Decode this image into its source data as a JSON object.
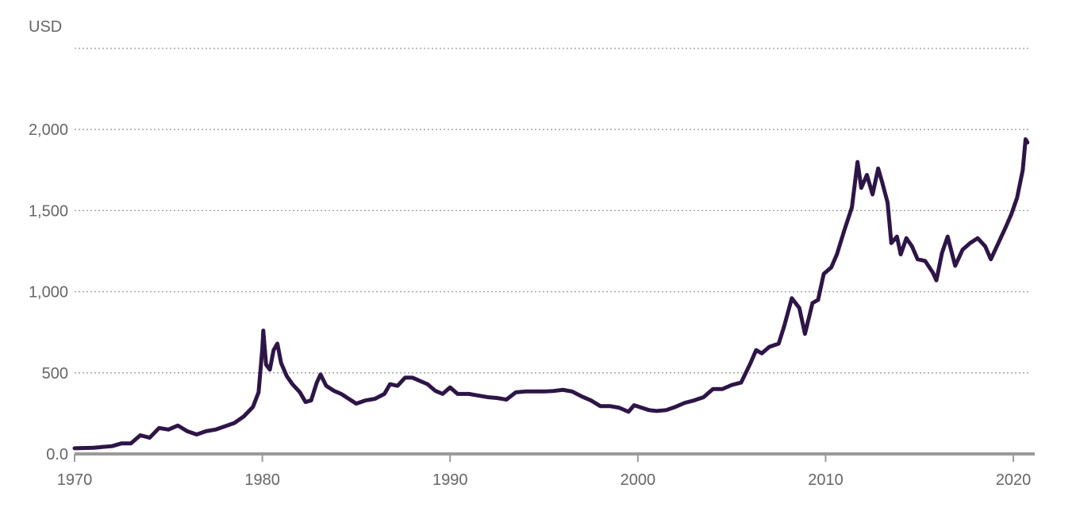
{
  "chart_data": {
    "type": "line",
    "title": "",
    "xlabel": "",
    "ylabel": "USD",
    "xlim": [
      1970,
      2020.8
    ],
    "ylim": [
      0,
      2500
    ],
    "yticks": [
      {
        "value": 0,
        "label": "0.0"
      },
      {
        "value": 500,
        "label": "500"
      },
      {
        "value": 1000,
        "label": "1,000"
      },
      {
        "value": 1500,
        "label": "1,500"
      },
      {
        "value": 2000,
        "label": "2,000"
      },
      {
        "value": 2500,
        "label": ""
      }
    ],
    "xticks": [
      {
        "value": 1970,
        "label": "1970"
      },
      {
        "value": 1980,
        "label": "1980"
      },
      {
        "value": 1990,
        "label": "1990"
      },
      {
        "value": 2000,
        "label": "2000"
      },
      {
        "value": 2010,
        "label": "2010"
      },
      {
        "value": 2020,
        "label": "2020"
      }
    ],
    "grid": true,
    "series": [
      {
        "color": "#2e1547",
        "points": [
          [
            1970.0,
            35
          ],
          [
            1971.0,
            38
          ],
          [
            1972.0,
            48
          ],
          [
            1972.5,
            65
          ],
          [
            1973.0,
            65
          ],
          [
            1973.5,
            115
          ],
          [
            1974.0,
            100
          ],
          [
            1974.5,
            160
          ],
          [
            1975.0,
            150
          ],
          [
            1975.5,
            175
          ],
          [
            1976.0,
            140
          ],
          [
            1976.5,
            120
          ],
          [
            1977.0,
            140
          ],
          [
            1977.5,
            150
          ],
          [
            1978.0,
            170
          ],
          [
            1978.5,
            190
          ],
          [
            1979.0,
            230
          ],
          [
            1979.5,
            290
          ],
          [
            1979.8,
            380
          ],
          [
            1980.0,
            650
          ],
          [
            1980.05,
            760
          ],
          [
            1980.2,
            550
          ],
          [
            1980.4,
            520
          ],
          [
            1980.6,
            640
          ],
          [
            1980.8,
            680
          ],
          [
            1981.0,
            560
          ],
          [
            1981.3,
            480
          ],
          [
            1981.6,
            430
          ],
          [
            1982.0,
            380
          ],
          [
            1982.3,
            320
          ],
          [
            1982.6,
            330
          ],
          [
            1982.9,
            440
          ],
          [
            1983.1,
            490
          ],
          [
            1983.4,
            420
          ],
          [
            1983.8,
            390
          ],
          [
            1984.2,
            370
          ],
          [
            1984.6,
            340
          ],
          [
            1985.0,
            310
          ],
          [
            1985.5,
            330
          ],
          [
            1986.0,
            340
          ],
          [
            1986.5,
            370
          ],
          [
            1986.8,
            430
          ],
          [
            1987.2,
            420
          ],
          [
            1987.6,
            470
          ],
          [
            1988.0,
            470
          ],
          [
            1988.4,
            450
          ],
          [
            1988.8,
            430
          ],
          [
            1989.2,
            390
          ],
          [
            1989.6,
            370
          ],
          [
            1990.0,
            410
          ],
          [
            1990.4,
            370
          ],
          [
            1991.0,
            370
          ],
          [
            1991.5,
            360
          ],
          [
            1992.0,
            350
          ],
          [
            1992.5,
            345
          ],
          [
            1993.0,
            335
          ],
          [
            1993.5,
            380
          ],
          [
            1994.0,
            385
          ],
          [
            1994.5,
            385
          ],
          [
            1995.0,
            385
          ],
          [
            1995.5,
            388
          ],
          [
            1996.0,
            395
          ],
          [
            1996.5,
            385
          ],
          [
            1997.0,
            355
          ],
          [
            1997.5,
            330
          ],
          [
            1998.0,
            295
          ],
          [
            1998.5,
            295
          ],
          [
            1999.0,
            285
          ],
          [
            1999.5,
            260
          ],
          [
            1999.8,
            300
          ],
          [
            2000.2,
            285
          ],
          [
            2000.6,
            270
          ],
          [
            2001.0,
            265
          ],
          [
            2001.5,
            270
          ],
          [
            2002.0,
            290
          ],
          [
            2002.5,
            315
          ],
          [
            2003.0,
            330
          ],
          [
            2003.5,
            350
          ],
          [
            2004.0,
            400
          ],
          [
            2004.5,
            400
          ],
          [
            2005.0,
            425
          ],
          [
            2005.5,
            440
          ],
          [
            2006.0,
            560
          ],
          [
            2006.3,
            640
          ],
          [
            2006.6,
            620
          ],
          [
            2007.0,
            660
          ],
          [
            2007.5,
            680
          ],
          [
            2007.8,
            790
          ],
          [
            2008.2,
            960
          ],
          [
            2008.6,
            900
          ],
          [
            2008.9,
            740
          ],
          [
            2009.3,
            930
          ],
          [
            2009.6,
            950
          ],
          [
            2009.9,
            1110
          ],
          [
            2010.3,
            1150
          ],
          [
            2010.6,
            1230
          ],
          [
            2011.0,
            1380
          ],
          [
            2011.4,
            1520
          ],
          [
            2011.7,
            1800
          ],
          [
            2011.9,
            1640
          ],
          [
            2012.2,
            1720
          ],
          [
            2012.5,
            1600
          ],
          [
            2012.8,
            1760
          ],
          [
            2013.0,
            1680
          ],
          [
            2013.3,
            1550
          ],
          [
            2013.5,
            1300
          ],
          [
            2013.8,
            1340
          ],
          [
            2014.0,
            1230
          ],
          [
            2014.3,
            1330
          ],
          [
            2014.6,
            1280
          ],
          [
            2014.9,
            1200
          ],
          [
            2015.3,
            1190
          ],
          [
            2015.7,
            1120
          ],
          [
            2015.9,
            1070
          ],
          [
            2016.2,
            1240
          ],
          [
            2016.5,
            1340
          ],
          [
            2016.9,
            1160
          ],
          [
            2017.3,
            1260
          ],
          [
            2017.7,
            1300
          ],
          [
            2018.1,
            1330
          ],
          [
            2018.5,
            1280
          ],
          [
            2018.8,
            1200
          ],
          [
            2019.2,
            1300
          ],
          [
            2019.6,
            1400
          ],
          [
            2019.9,
            1480
          ],
          [
            2020.2,
            1580
          ],
          [
            2020.5,
            1750
          ],
          [
            2020.65,
            1940
          ],
          [
            2020.75,
            1920
          ]
        ]
      }
    ]
  }
}
